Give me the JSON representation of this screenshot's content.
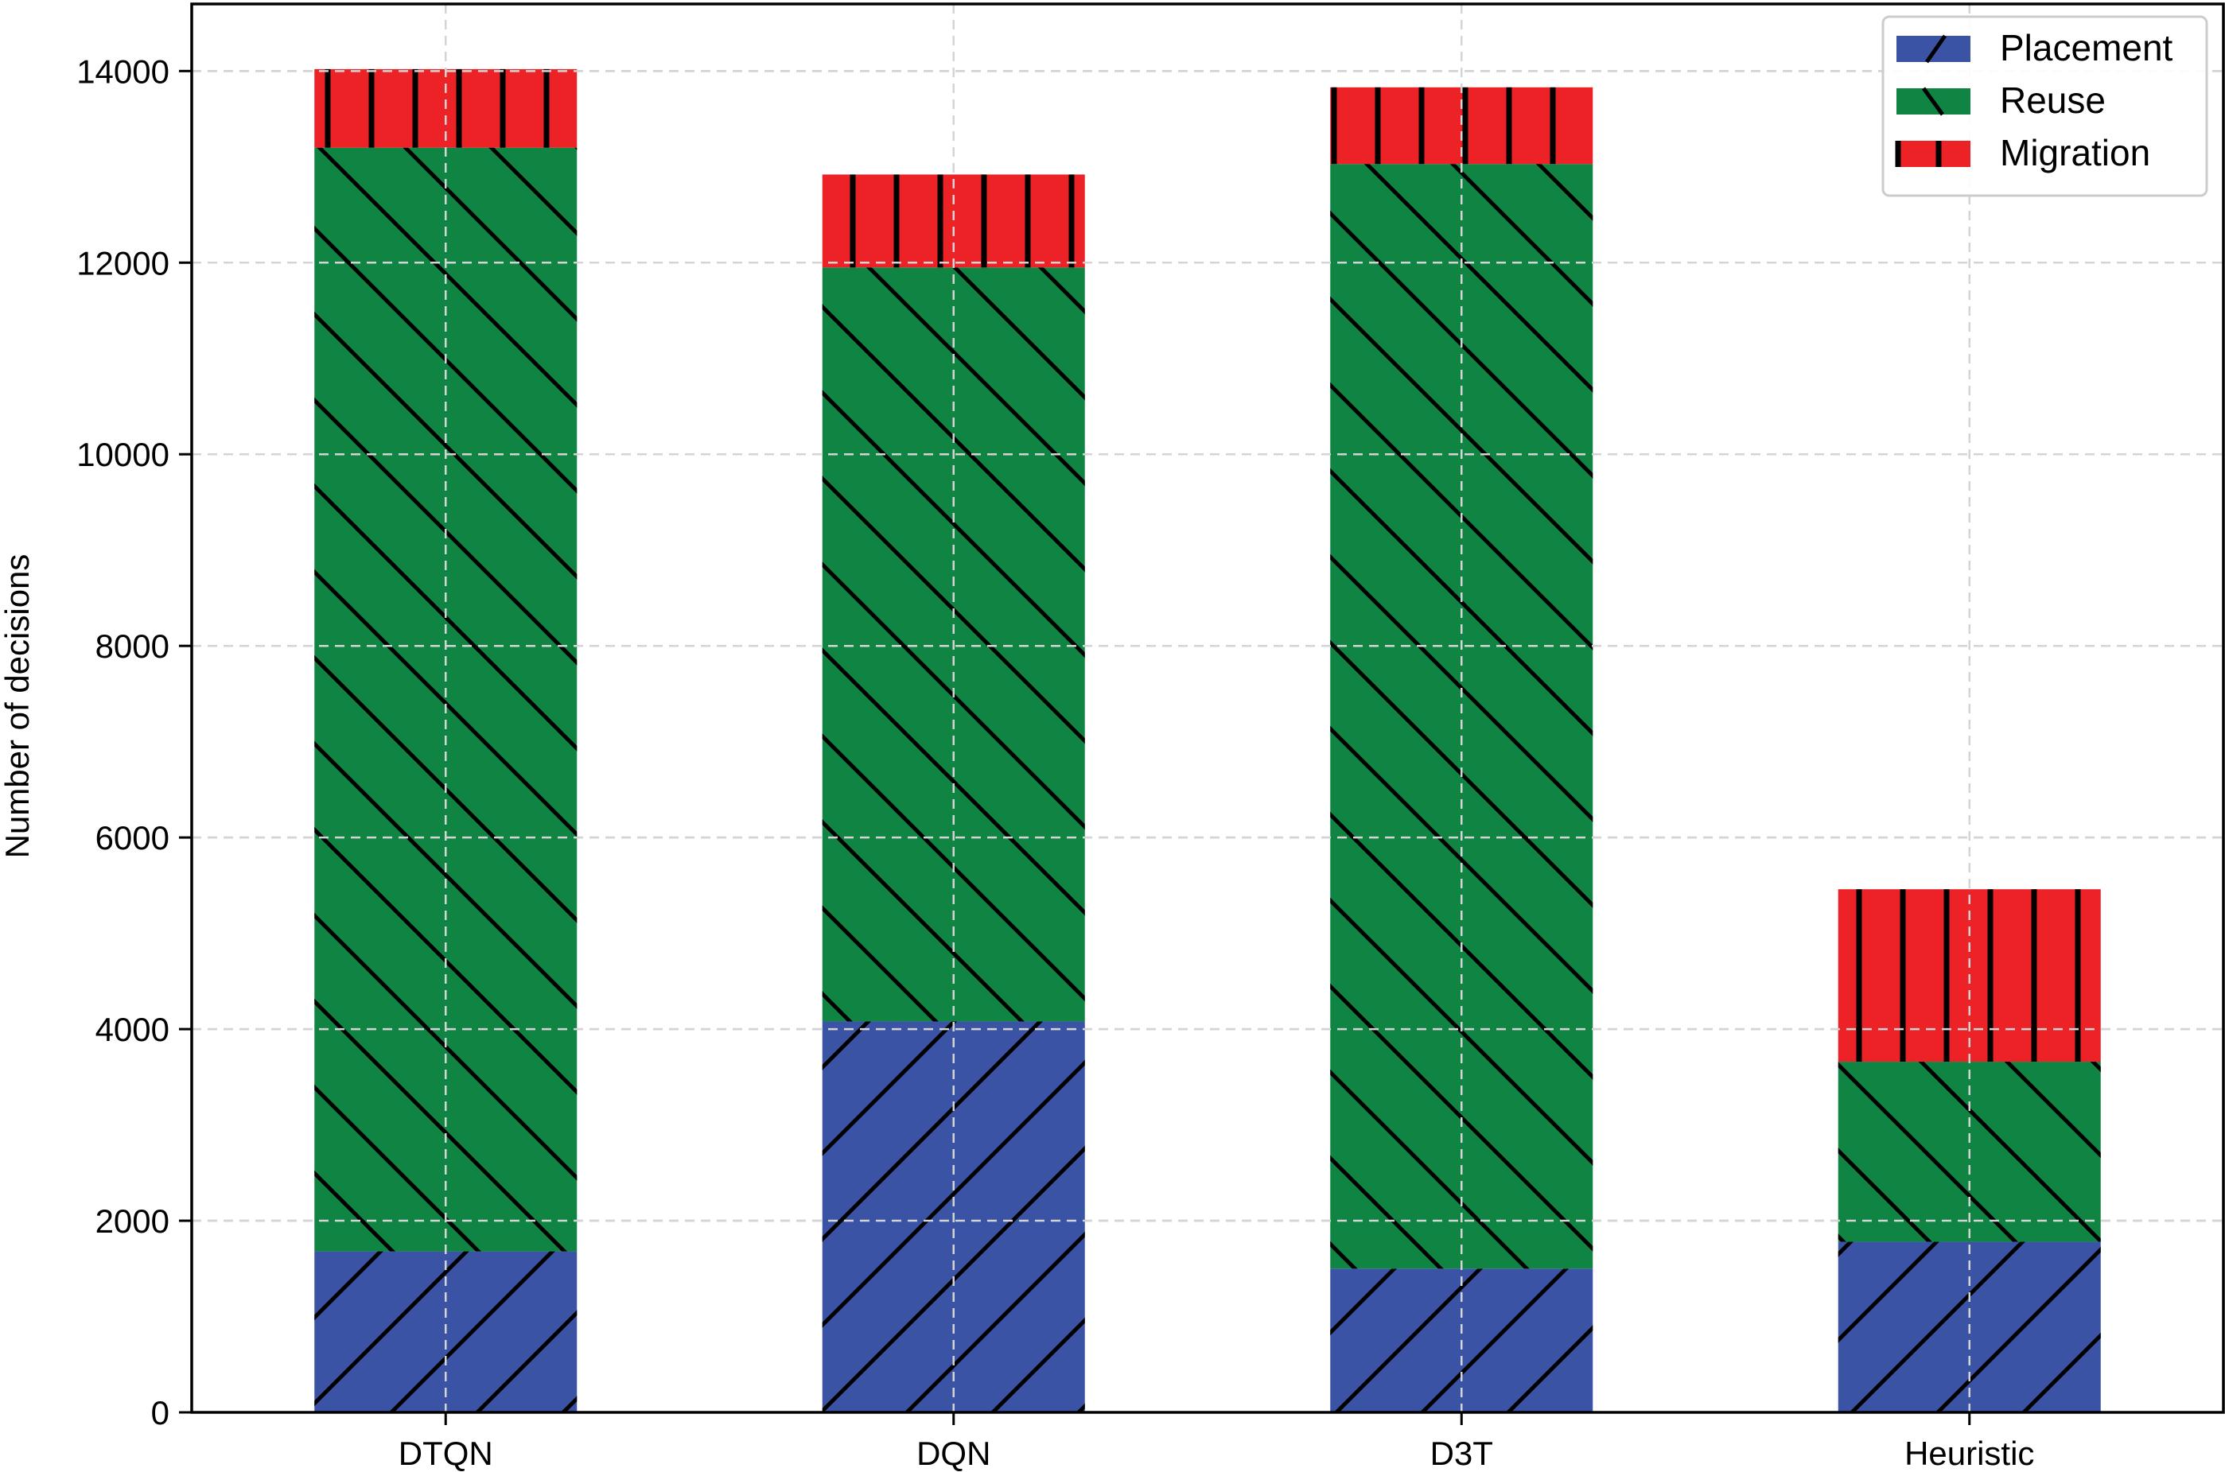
{
  "chart_data": {
    "type": "bar",
    "stacked": true,
    "categories": [
      "DTQN",
      "DQN",
      "D3T",
      "Heuristic"
    ],
    "series": [
      {
        "name": "Placement",
        "values": [
          1680,
          4080,
          1500,
          1780
        ],
        "color": "#3a53a4",
        "hatch": "forward-diagonal"
      },
      {
        "name": "Reuse",
        "values": [
          11520,
          7870,
          11530,
          1880
        ],
        "color": "#108443",
        "hatch": "back-diagonal"
      },
      {
        "name": "Migration",
        "values": [
          820,
          970,
          800,
          1800
        ],
        "color": "#ec2227",
        "hatch": "vertical"
      }
    ],
    "title": "",
    "xlabel": "",
    "ylabel": "Number of decisions",
    "ylim": [
      0,
      14700
    ],
    "yticks": [
      0,
      2000,
      4000,
      6000,
      8000,
      10000,
      12000,
      14000
    ],
    "grid": true,
    "legend_position": "top-right"
  }
}
